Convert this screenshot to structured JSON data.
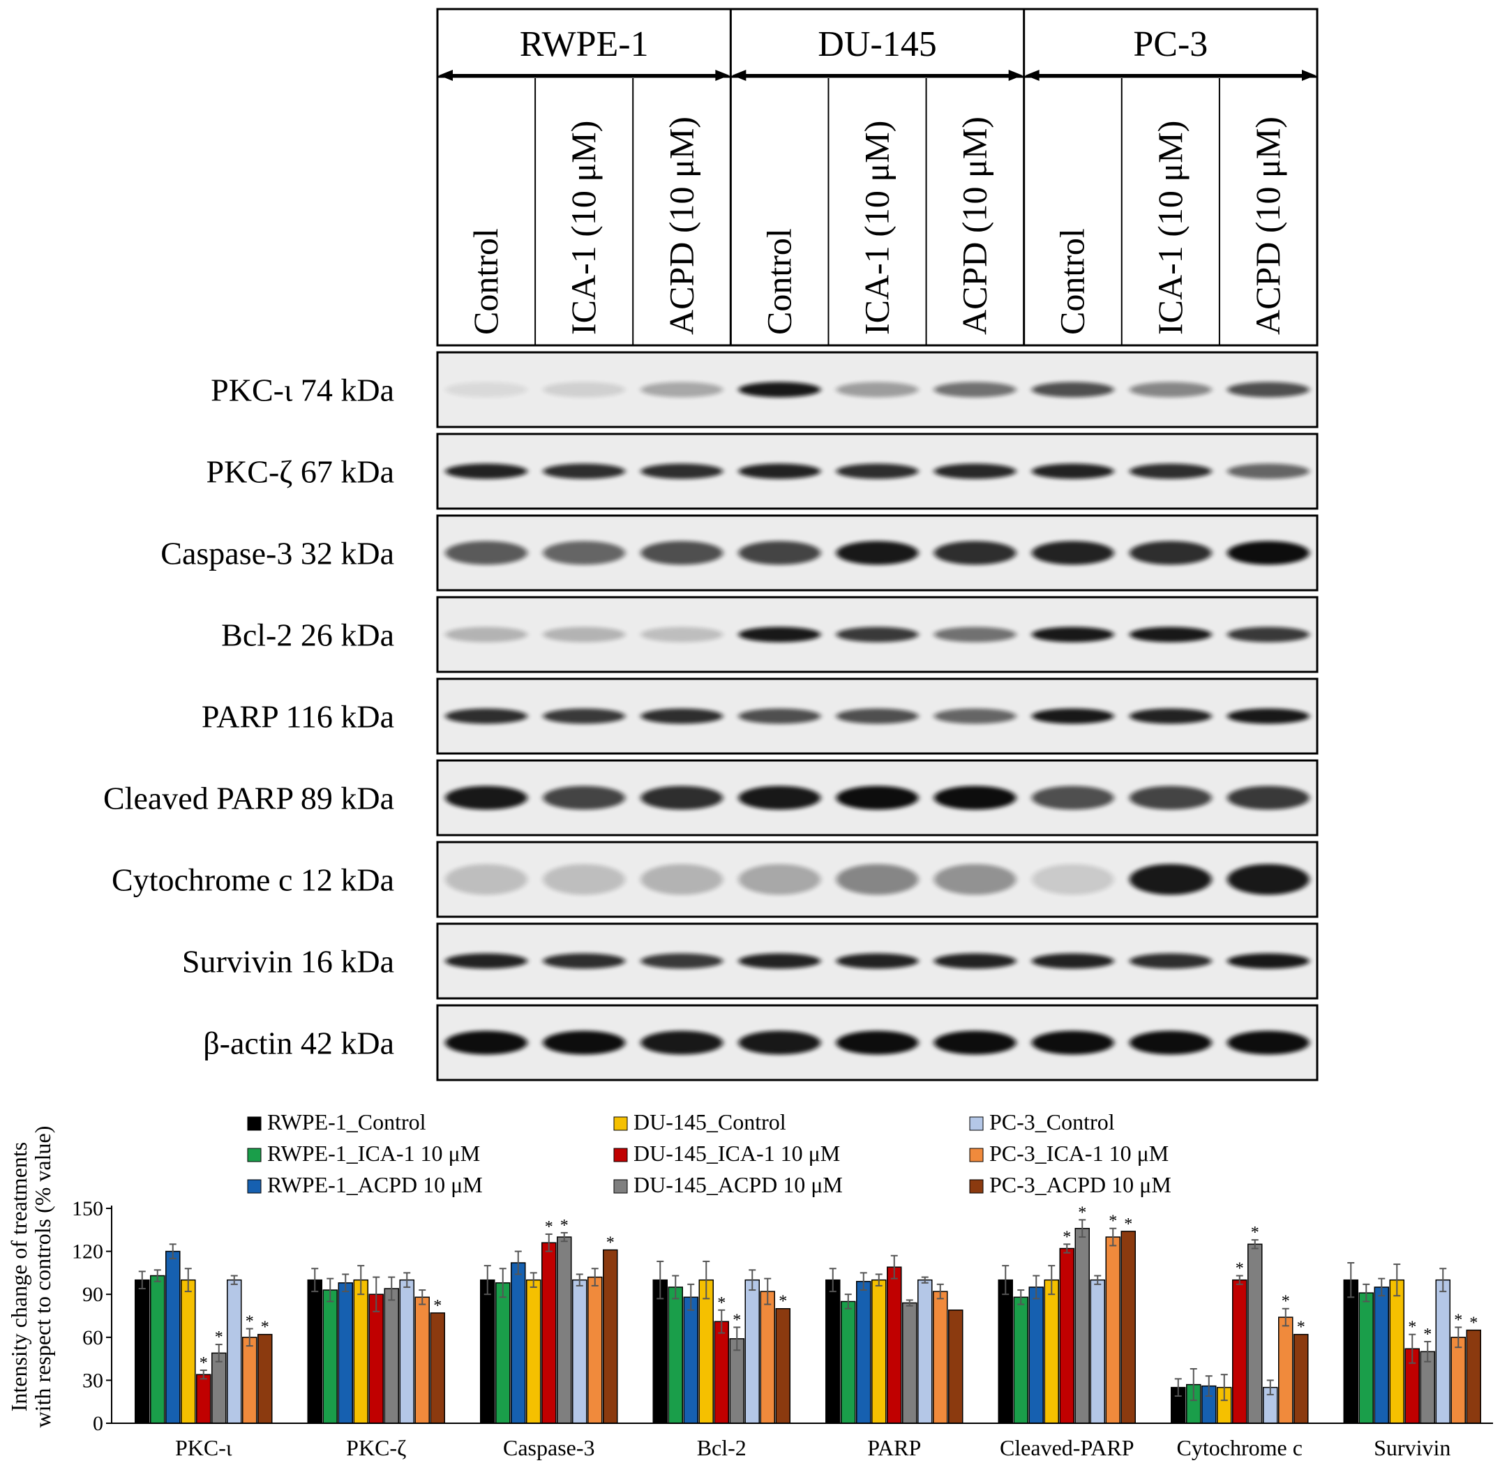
{
  "blot": {
    "cell_lines": [
      "RWPE-1",
      "DU-145",
      "PC-3"
    ],
    "treatments": [
      "Control",
      "ICA-1 (10 μM)",
      "ACPD (10 μM)"
    ],
    "rows": [
      {
        "protein": "PKC-ι 74 kDa",
        "intensity": [
          0.08,
          0.12,
          0.3,
          0.95,
          0.35,
          0.55,
          0.7,
          0.45,
          0.7
        ],
        "band": "thin"
      },
      {
        "protein": "PKC-ζ 67 kDa",
        "intensity": [
          0.9,
          0.85,
          0.85,
          0.9,
          0.85,
          0.88,
          0.9,
          0.85,
          0.6
        ],
        "band": "thin"
      },
      {
        "protein": "Caspase-3 32 kDa",
        "intensity": [
          0.65,
          0.6,
          0.7,
          0.75,
          0.95,
          0.85,
          0.9,
          0.85,
          1.0
        ],
        "band": "thick"
      },
      {
        "protein": "Bcl-2 26 kDa",
        "intensity": [
          0.25,
          0.25,
          0.2,
          0.95,
          0.8,
          0.55,
          0.95,
          0.95,
          0.8
        ],
        "band": "thin"
      },
      {
        "protein": "PARP  116 kDa",
        "intensity": [
          0.85,
          0.8,
          0.85,
          0.7,
          0.7,
          0.6,
          0.95,
          0.9,
          0.95
        ],
        "band": "thin"
      },
      {
        "protein": "Cleaved PARP 89 kDa",
        "intensity": [
          0.95,
          0.75,
          0.85,
          0.95,
          1.0,
          1.0,
          0.7,
          0.75,
          0.8
        ],
        "band": "thick"
      },
      {
        "protein": "Cytochrome c    12 kDa",
        "intensity": [
          0.2,
          0.2,
          0.25,
          0.3,
          0.45,
          0.4,
          0.15,
          0.95,
          0.95
        ],
        "band": "smear"
      },
      {
        "protein": "Survivin 16 kDa",
        "intensity": [
          0.9,
          0.85,
          0.8,
          0.9,
          0.9,
          0.9,
          0.9,
          0.85,
          0.95
        ],
        "band": "thin"
      },
      {
        "protein": "β-actin 42 kDa",
        "intensity": [
          1.0,
          1.0,
          0.95,
          0.95,
          1.0,
          1.0,
          1.0,
          1.0,
          1.0
        ],
        "band": "thick"
      }
    ]
  },
  "chart_data": {
    "type": "bar",
    "ylabel_line1": "Intensity change of treatments",
    "ylabel_line2": "with respect to controls (% value)",
    "ylim": [
      0,
      150
    ],
    "yticks": [
      0,
      30,
      60,
      90,
      120,
      150
    ],
    "grid": false,
    "legend_position": "top",
    "categories": [
      "PKC-ι",
      "PKC-ζ",
      "Caspase-3",
      "Bcl-2",
      "PARP",
      "Cleaved-PARP",
      "Cytochrome c",
      "Survivin"
    ],
    "series": [
      {
        "name": "RWPE-1_Control",
        "color": "#000000",
        "values": [
          100,
          100,
          100,
          100,
          100,
          100,
          25,
          100
        ],
        "errors": [
          6,
          8,
          10,
          13,
          8,
          10,
          6,
          12
        ],
        "sig": [
          false,
          false,
          false,
          false,
          false,
          false,
          false,
          false
        ]
      },
      {
        "name": "RWPE-1_ICA-1 10 μM",
        "color": "#1a9e4a",
        "values": [
          103,
          93,
          98,
          95,
          85,
          88,
          27,
          91
        ],
        "errors": [
          4,
          8,
          10,
          8,
          5,
          5,
          11,
          6
        ],
        "sig": [
          false,
          false,
          false,
          false,
          false,
          false,
          false,
          false
        ]
      },
      {
        "name": "RWPE-1_ACPD 10 μM",
        "color": "#1660b0",
        "values": [
          120,
          98,
          112,
          88,
          99,
          95,
          26,
          95
        ],
        "errors": [
          5,
          6,
          8,
          9,
          6,
          8,
          7,
          6
        ],
        "sig": [
          false,
          false,
          false,
          false,
          false,
          false,
          false,
          false
        ]
      },
      {
        "name": "DU-145_Control",
        "color": "#f5c000",
        "values": [
          100,
          100,
          100,
          100,
          100,
          100,
          25,
          100
        ],
        "errors": [
          8,
          10,
          5,
          13,
          4,
          10,
          9,
          11
        ],
        "sig": [
          false,
          false,
          false,
          false,
          false,
          false,
          false,
          false
        ]
      },
      {
        "name": "DU-145_ICA-1 10 μM",
        "color": "#c00000",
        "values": [
          34,
          90,
          126,
          71,
          109,
          122,
          100,
          52
        ],
        "errors": [
          3,
          12,
          6,
          8,
          8,
          3,
          3,
          10
        ],
        "sig": [
          true,
          false,
          true,
          true,
          false,
          true,
          true,
          true
        ]
      },
      {
        "name": "DU-145_ACPD 10 μM",
        "color": "#7f7f7f",
        "values": [
          49,
          94,
          130,
          59,
          84,
          136,
          125,
          50
        ],
        "errors": [
          6,
          8,
          3,
          8,
          2,
          6,
          3,
          7
        ],
        "sig": [
          true,
          false,
          true,
          true,
          false,
          true,
          true,
          true
        ]
      },
      {
        "name": "PC-3_Control",
        "color": "#b4c7e7",
        "values": [
          100,
          100,
          100,
          100,
          100,
          100,
          25,
          100
        ],
        "errors": [
          3,
          5,
          4,
          7,
          2,
          3,
          5,
          8
        ],
        "sig": [
          false,
          false,
          false,
          false,
          false,
          false,
          false,
          false
        ]
      },
      {
        "name": "PC-3_ICA-1 10 μM",
        "color": "#f08a3c",
        "values": [
          60,
          88,
          102,
          92,
          92,
          130,
          74,
          60
        ],
        "errors": [
          6,
          5,
          6,
          9,
          5,
          6,
          6,
          7
        ],
        "sig": [
          true,
          false,
          false,
          false,
          false,
          true,
          true,
          true
        ]
      },
      {
        "name": "PC-3_ACPD 10 μM",
        "color": "#8b3a0f",
        "values": [
          62,
          77,
          121,
          80,
          79,
          134,
          62,
          65
        ],
        "errors": [
          0,
          0,
          0,
          0,
          0,
          0,
          0,
          0
        ],
        "sig": [
          true,
          true,
          true,
          true,
          false,
          true,
          true,
          true
        ]
      }
    ],
    "sig_marker": "*"
  }
}
